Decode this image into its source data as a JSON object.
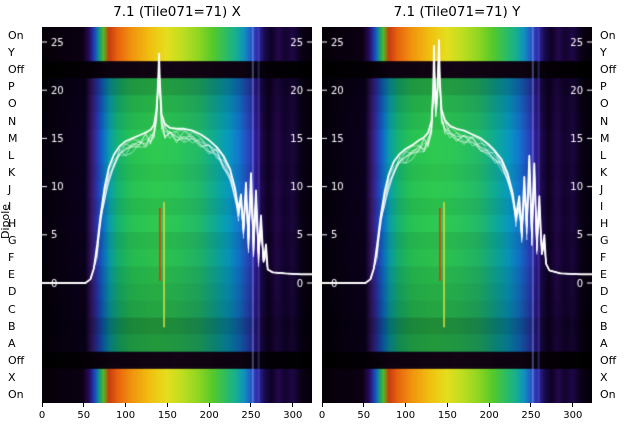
{
  "figure": {
    "y_axis_title": "Dipole"
  },
  "chart_data": {
    "type": "heatmap",
    "title_left": "7.1 (Tile071=71) X",
    "title_right": "7.1 (Tile071=71) Y",
    "x_range": [
      0,
      323
    ],
    "x_ticks": [
      0,
      50,
      100,
      150,
      200,
      250,
      300
    ],
    "db_ticks": [
      0,
      5,
      10,
      15,
      20,
      25
    ],
    "rows": [
      {
        "label": "On",
        "band": "bright",
        "dim": 0
      },
      {
        "label": "Y",
        "band": "bright",
        "dim": 0
      },
      {
        "label": "Off",
        "band": "off",
        "dim": 0
      },
      {
        "label": "P",
        "band": "mid",
        "dim": 0.22
      },
      {
        "label": "O",
        "band": "mid",
        "dim": 0.12
      },
      {
        "label": "N",
        "band": "mid",
        "dim": 0.06
      },
      {
        "label": "M",
        "band": "mid",
        "dim": 0
      },
      {
        "label": "L",
        "band": "mid",
        "dim": 0
      },
      {
        "label": "K",
        "band": "mid",
        "dim": 0.04
      },
      {
        "label": "J",
        "band": "mid",
        "dim": 0
      },
      {
        "label": "I",
        "band": "mid",
        "dim": 0.05
      },
      {
        "label": "H",
        "band": "mid",
        "dim": 0
      },
      {
        "label": "G",
        "band": "mid",
        "dim": 0.08
      },
      {
        "label": "F",
        "band": "mid",
        "dim": 0.04
      },
      {
        "label": "E",
        "band": "mid",
        "dim": 0.1
      },
      {
        "label": "D",
        "band": "mid",
        "dim": 0.14
      },
      {
        "label": "C",
        "band": "mid",
        "dim": 0.18
      },
      {
        "label": "B",
        "band": "mid",
        "dim": 0.3
      },
      {
        "label": "A",
        "band": "mid",
        "dim": 0.24
      },
      {
        "label": "Off",
        "band": "off",
        "dim": 0
      },
      {
        "label": "X",
        "band": "bright",
        "dim": 0
      },
      {
        "label": "On",
        "band": "bright",
        "dim": 0
      }
    ],
    "palettes": {
      "bright": [
        [
          0,
          "#060008"
        ],
        [
          0.15,
          "#0b0013"
        ],
        [
          0.175,
          "#2a0a60"
        ],
        [
          0.195,
          "#1a48c0"
        ],
        [
          0.212,
          "#0f9a8a"
        ],
        [
          0.228,
          "#55b81e"
        ],
        [
          0.248,
          "#c83c0e"
        ],
        [
          0.28,
          "#e8640e"
        ],
        [
          0.33,
          "#f0920e"
        ],
        [
          0.4,
          "#f0c010"
        ],
        [
          0.46,
          "#e6de1e"
        ],
        [
          0.52,
          "#bede20"
        ],
        [
          0.58,
          "#8ed622"
        ],
        [
          0.63,
          "#58ca2a"
        ],
        [
          0.68,
          "#2ebe62"
        ],
        [
          0.72,
          "#16ae92"
        ],
        [
          0.75,
          "#108ec0"
        ],
        [
          0.775,
          "#2656c6"
        ],
        [
          0.8,
          "#3026a4"
        ],
        [
          0.825,
          "#190a4e"
        ],
        [
          0.85,
          "#0d0124"
        ],
        [
          0.875,
          "#24094c"
        ],
        [
          0.9,
          "#130430"
        ],
        [
          0.93,
          "#1e0645"
        ],
        [
          0.96,
          "#0a0116"
        ],
        [
          1,
          "#060008"
        ]
      ],
      "mid": [
        [
          0,
          "#05000a"
        ],
        [
          0.16,
          "#0c001e"
        ],
        [
          0.185,
          "#381a6e"
        ],
        [
          0.205,
          "#2838b2"
        ],
        [
          0.228,
          "#0b70c6"
        ],
        [
          0.252,
          "#0aa0a6"
        ],
        [
          0.285,
          "#17b46e"
        ],
        [
          0.33,
          "#27c254"
        ],
        [
          0.42,
          "#2fca50"
        ],
        [
          0.5,
          "#2bc658"
        ],
        [
          0.58,
          "#23ba68"
        ],
        [
          0.64,
          "#10aa94"
        ],
        [
          0.69,
          "#089abe"
        ],
        [
          0.73,
          "#1376ce"
        ],
        [
          0.765,
          "#2746be"
        ],
        [
          0.79,
          "#331a98"
        ],
        [
          0.815,
          "#1b0846"
        ],
        [
          0.84,
          "#0d0122"
        ],
        [
          0.87,
          "#230848"
        ],
        [
          0.9,
          "#11032e"
        ],
        [
          0.93,
          "#1b063e"
        ],
        [
          0.96,
          "#090116"
        ],
        [
          1,
          "#05000a"
        ]
      ],
      "off": [
        [
          0,
          "#000000"
        ],
        [
          0.17,
          "#040006"
        ],
        [
          0.25,
          "#0c0210"
        ],
        [
          0.5,
          "#120414"
        ],
        [
          0.75,
          "#0c0210"
        ],
        [
          0.85,
          "#040006"
        ],
        [
          1,
          "#000000"
        ]
      ]
    },
    "strips": [
      {
        "x": 251,
        "w": 2,
        "color": "rgba(150,175,255,0.40)"
      },
      {
        "x": 258,
        "w": 2,
        "color": "rgba(95,115,235,0.32)"
      }
    ],
    "panels": [
      {
        "title": "7.1 (Tile071=71) X",
        "line_db": [
          [
            0,
            0
          ],
          [
            52,
            0
          ],
          [
            58,
            0.4
          ],
          [
            62,
            1.5
          ],
          [
            66,
            4
          ],
          [
            70,
            7
          ],
          [
            75,
            10
          ],
          [
            80,
            12
          ],
          [
            86,
            13.3
          ],
          [
            93,
            14.2
          ],
          [
            100,
            14.7
          ],
          [
            108,
            15
          ],
          [
            116,
            15.3
          ],
          [
            124,
            15.6
          ],
          [
            130,
            15.9
          ],
          [
            134,
            16.4
          ],
          [
            137,
            18
          ],
          [
            139,
            21
          ],
          [
            140,
            23.8
          ],
          [
            141,
            21
          ],
          [
            143,
            17.5
          ],
          [
            147,
            16.5
          ],
          [
            153,
            16.1
          ],
          [
            161,
            16
          ],
          [
            170,
            16
          ],
          [
            180,
            15.8
          ],
          [
            190,
            15.4
          ],
          [
            200,
            14.8
          ],
          [
            209,
            14.1
          ],
          [
            217,
            13.2
          ],
          [
            225,
            11.8
          ],
          [
            231,
            9.8
          ],
          [
            235,
            7.6
          ],
          [
            238,
            9.2
          ],
          [
            241,
            5.6
          ],
          [
            244,
            10.4
          ],
          [
            247,
            4.6
          ],
          [
            250,
            11.4
          ],
          [
            253,
            4.2
          ],
          [
            256,
            9.6
          ],
          [
            259,
            3.2
          ],
          [
            262,
            7
          ],
          [
            265,
            2.2
          ],
          [
            268,
            4
          ],
          [
            270,
            1.4
          ],
          [
            276,
            1.1
          ],
          [
            290,
            1
          ],
          [
            310,
            0.9
          ],
          [
            323,
            0.9
          ]
        ],
        "markers": [
          {
            "x": 141,
            "db_from": 0.2,
            "db_to": 7.8,
            "color": "#ff2800"
          },
          {
            "x": 146,
            "db_from": -4.6,
            "db_to": 8.4,
            "color": "#d4e24a"
          }
        ]
      },
      {
        "title": "7.1 (Tile071=71) Y",
        "line_db": [
          [
            0,
            0
          ],
          [
            52,
            0
          ],
          [
            58,
            0.4
          ],
          [
            62,
            1.5
          ],
          [
            66,
            4
          ],
          [
            70,
            6.8
          ],
          [
            75,
            9.5
          ],
          [
            80,
            11.3
          ],
          [
            86,
            12.6
          ],
          [
            93,
            13.4
          ],
          [
            100,
            13.9
          ],
          [
            108,
            14.3
          ],
          [
            116,
            14.8
          ],
          [
            122,
            15.1
          ],
          [
            127,
            15.6
          ],
          [
            131,
            16.8
          ],
          [
            133,
            20
          ],
          [
            134,
            24.6
          ],
          [
            135,
            21
          ],
          [
            136,
            18.6
          ],
          [
            138,
            20
          ],
          [
            140,
            25.2
          ],
          [
            141,
            21
          ],
          [
            143,
            18
          ],
          [
            147,
            16.9
          ],
          [
            153,
            16.3
          ],
          [
            161,
            16
          ],
          [
            170,
            15.8
          ],
          [
            180,
            15.4
          ],
          [
            190,
            15
          ],
          [
            199,
            14.4
          ],
          [
            207,
            13.7
          ],
          [
            215,
            12.8
          ],
          [
            222,
            11.4
          ],
          [
            228,
            9.4
          ],
          [
            232,
            7
          ],
          [
            236,
            9
          ],
          [
            239,
            5.2
          ],
          [
            242,
            11
          ],
          [
            245,
            6
          ],
          [
            248,
            13.2
          ],
          [
            251,
            5.4
          ],
          [
            254,
            12.4
          ],
          [
            257,
            4.4
          ],
          [
            260,
            9
          ],
          [
            263,
            3
          ],
          [
            266,
            5
          ],
          [
            268,
            2
          ],
          [
            272,
            1.3
          ],
          [
            285,
            1
          ],
          [
            310,
            0.9
          ],
          [
            323,
            0.9
          ]
        ],
        "markers": [
          {
            "x": 141,
            "db_from": 0.2,
            "db_to": 7.8,
            "color": "#ff2800"
          },
          {
            "x": 146,
            "db_from": -4.6,
            "db_to": 8.4,
            "color": "#d4e24a"
          }
        ]
      }
    ]
  }
}
